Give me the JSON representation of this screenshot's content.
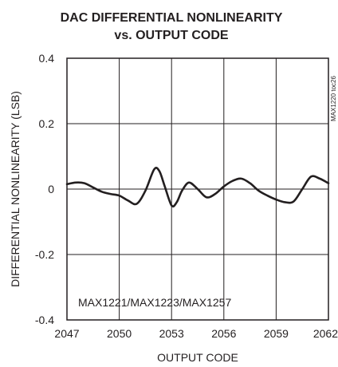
{
  "chart_data": {
    "type": "line",
    "title": "DAC DIFFERENTIAL NONLINEARITY",
    "subtitle": "vs. OUTPUT CODE",
    "xlabel": "OUTPUT CODE",
    "ylabel": "DIFFERENTIAL NONLINEARITY (LSB)",
    "xlim": [
      2047,
      2062
    ],
    "ylim": [
      -0.4,
      0.4
    ],
    "x_ticks": [
      2047,
      2050,
      2053,
      2056,
      2059,
      2062
    ],
    "x_tick_labels": [
      "2047",
      "2050",
      "2053",
      "2056",
      "2059",
      "2062"
    ],
    "y_ticks": [
      0.4,
      0.2,
      0,
      -0.2,
      -0.4
    ],
    "y_tick_labels": [
      "0.4",
      "0.2",
      "0",
      "-0.2",
      "-0.4"
    ],
    "grid": true,
    "annotation": "MAX1221/MAX1223/MAX1257",
    "side_code": "MAX1220 toc26",
    "series": [
      {
        "x": [
          2047.0,
          2047.5,
          2048.0,
          2048.5,
          2049.0,
          2049.5,
          2050.0,
          2050.5,
          2051.0,
          2051.5,
          2052.0,
          2052.3,
          2052.6,
          2053.0,
          2053.3,
          2053.6,
          2054.0,
          2054.5,
          2055.0,
          2055.5,
          2056.0,
          2056.5,
          2057.0,
          2057.5,
          2058.0,
          2058.5,
          2059.0,
          2059.5,
          2060.0,
          2060.5,
          2061.0,
          2061.5,
          2062.0
        ],
        "y": [
          0.015,
          0.02,
          0.018,
          0.005,
          -0.008,
          -0.015,
          -0.02,
          -0.035,
          -0.045,
          -0.005,
          0.06,
          0.055,
          0.01,
          -0.05,
          -0.04,
          -0.005,
          0.02,
          0.0,
          -0.025,
          -0.015,
          0.008,
          0.025,
          0.032,
          0.018,
          -0.005,
          -0.02,
          -0.032,
          -0.04,
          -0.038,
          0.0,
          0.038,
          0.032,
          0.018
        ]
      }
    ]
  }
}
